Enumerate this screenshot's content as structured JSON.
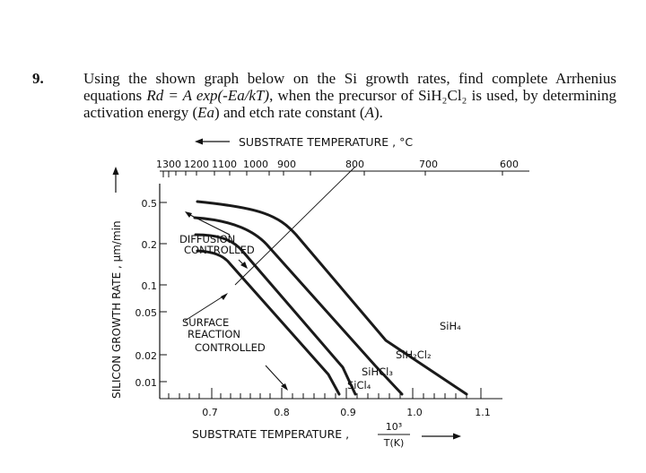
{
  "question": {
    "number": "9.",
    "line1": "Using the shown graph below on the Si growth rates, find complete Arrhenius",
    "line2_a": "equations ",
    "line2_eq": "Rd = A exp(-Ea/kT)",
    "line2_b": ",  when  the  precursor  of  SiH₂Cl₂  is  used,  by",
    "line3_a": "determining activation energy (",
    "line3_ea": "Ea",
    "line3_b": ") and etch rate constant (",
    "line3_A": "A",
    "line3_c": ")."
  },
  "chart_data": {
    "type": "line",
    "top_axis": {
      "label": "SUBSTRATE TEMPERATURE , °C",
      "ticks": [
        "1300",
        "1200",
        "1100",
        "1000",
        "900",
        "800",
        "700",
        "600"
      ]
    },
    "x_axis": {
      "label": "SUBSTRATE TEMPERATURE ,",
      "unit_num": "10³",
      "unit_den": "T(K)",
      "ticks": [
        "0.7",
        "0.8",
        "0.9",
        "1.0",
        "1.1"
      ]
    },
    "y_axis": {
      "label": "SILICON GROWTH RATE , μm/min",
      "scale": "log",
      "ticks": [
        "0.5",
        "0.2",
        "0.1",
        "0.05",
        "0.02",
        "0.01"
      ]
    },
    "regions": {
      "diffusion": [
        "DIFFUSION",
        "CONTROLLED"
      ],
      "surface": [
        "SURFACE",
        "REACTION",
        "CONTROLLED"
      ]
    },
    "series": [
      {
        "name": "SiH₄"
      },
      {
        "name": "SiH₂Cl₂"
      },
      {
        "name": "SiHCl₃"
      },
      {
        "name": "SiCl₄"
      }
    ]
  }
}
